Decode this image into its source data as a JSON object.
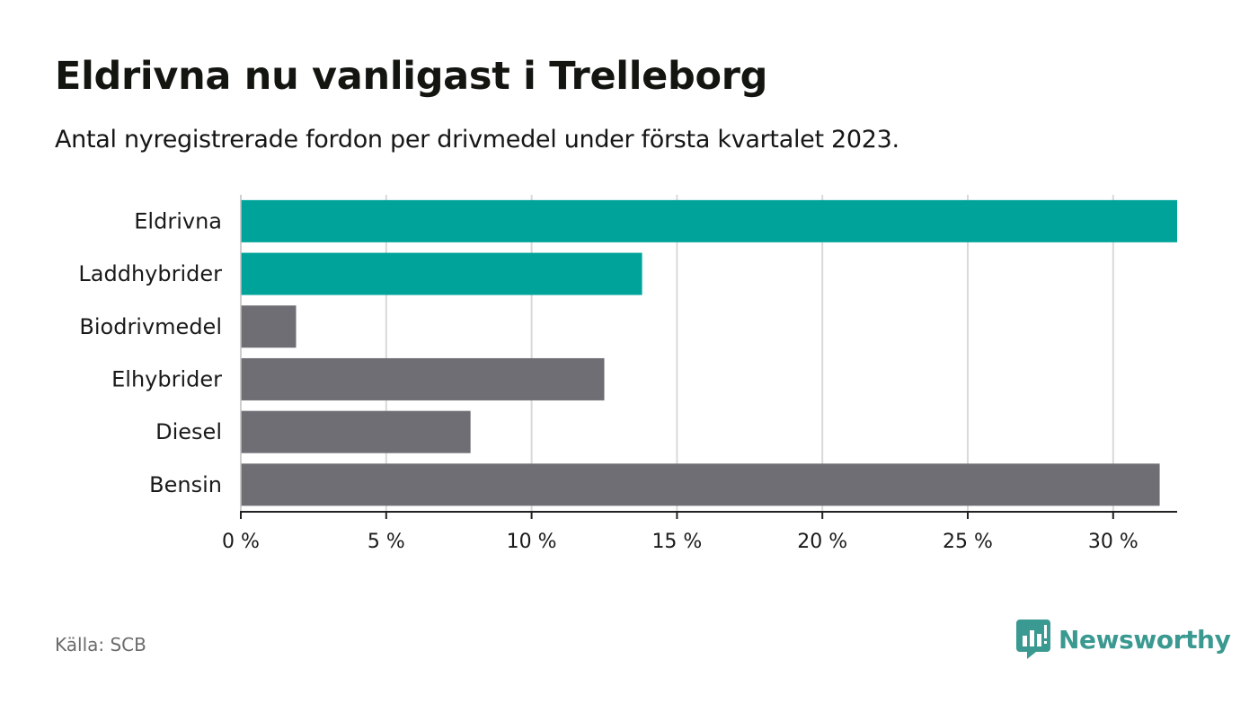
{
  "header": {
    "title": "Eldrivna nu vanligast i Trelleborg",
    "subtitle": "Antal nyregistrerade fordon per drivmedel under första kvartalet 2023."
  },
  "chart_data": {
    "type": "bar",
    "orientation": "horizontal",
    "categories": [
      "Eldrivna",
      "Laddhybrider",
      "Biodrivmedel",
      "Elhybrider",
      "Diesel",
      "Bensin"
    ],
    "values": [
      32.2,
      13.8,
      1.9,
      12.5,
      7.9,
      31.6
    ],
    "highlighted": [
      true,
      true,
      false,
      false,
      false,
      false
    ],
    "unit": "%",
    "xlim": [
      0,
      32.2
    ],
    "xticks": [
      0,
      5,
      10,
      15,
      20,
      25,
      30
    ],
    "xtick_labels": [
      "0 %",
      "5 %",
      "10 %",
      "15 %",
      "20 %",
      "25 %",
      "30 %"
    ],
    "grid": "vertical",
    "colors": {
      "highlight": "#00a39a",
      "default": "#6f6e75",
      "grid": "#d9d9d9",
      "axis": "#222222"
    }
  },
  "footer": {
    "source": "Källa: SCB",
    "brand": "Newsworthy",
    "brand_icon": "newsworthy-logo-icon",
    "brand_color": "#3a9990"
  }
}
